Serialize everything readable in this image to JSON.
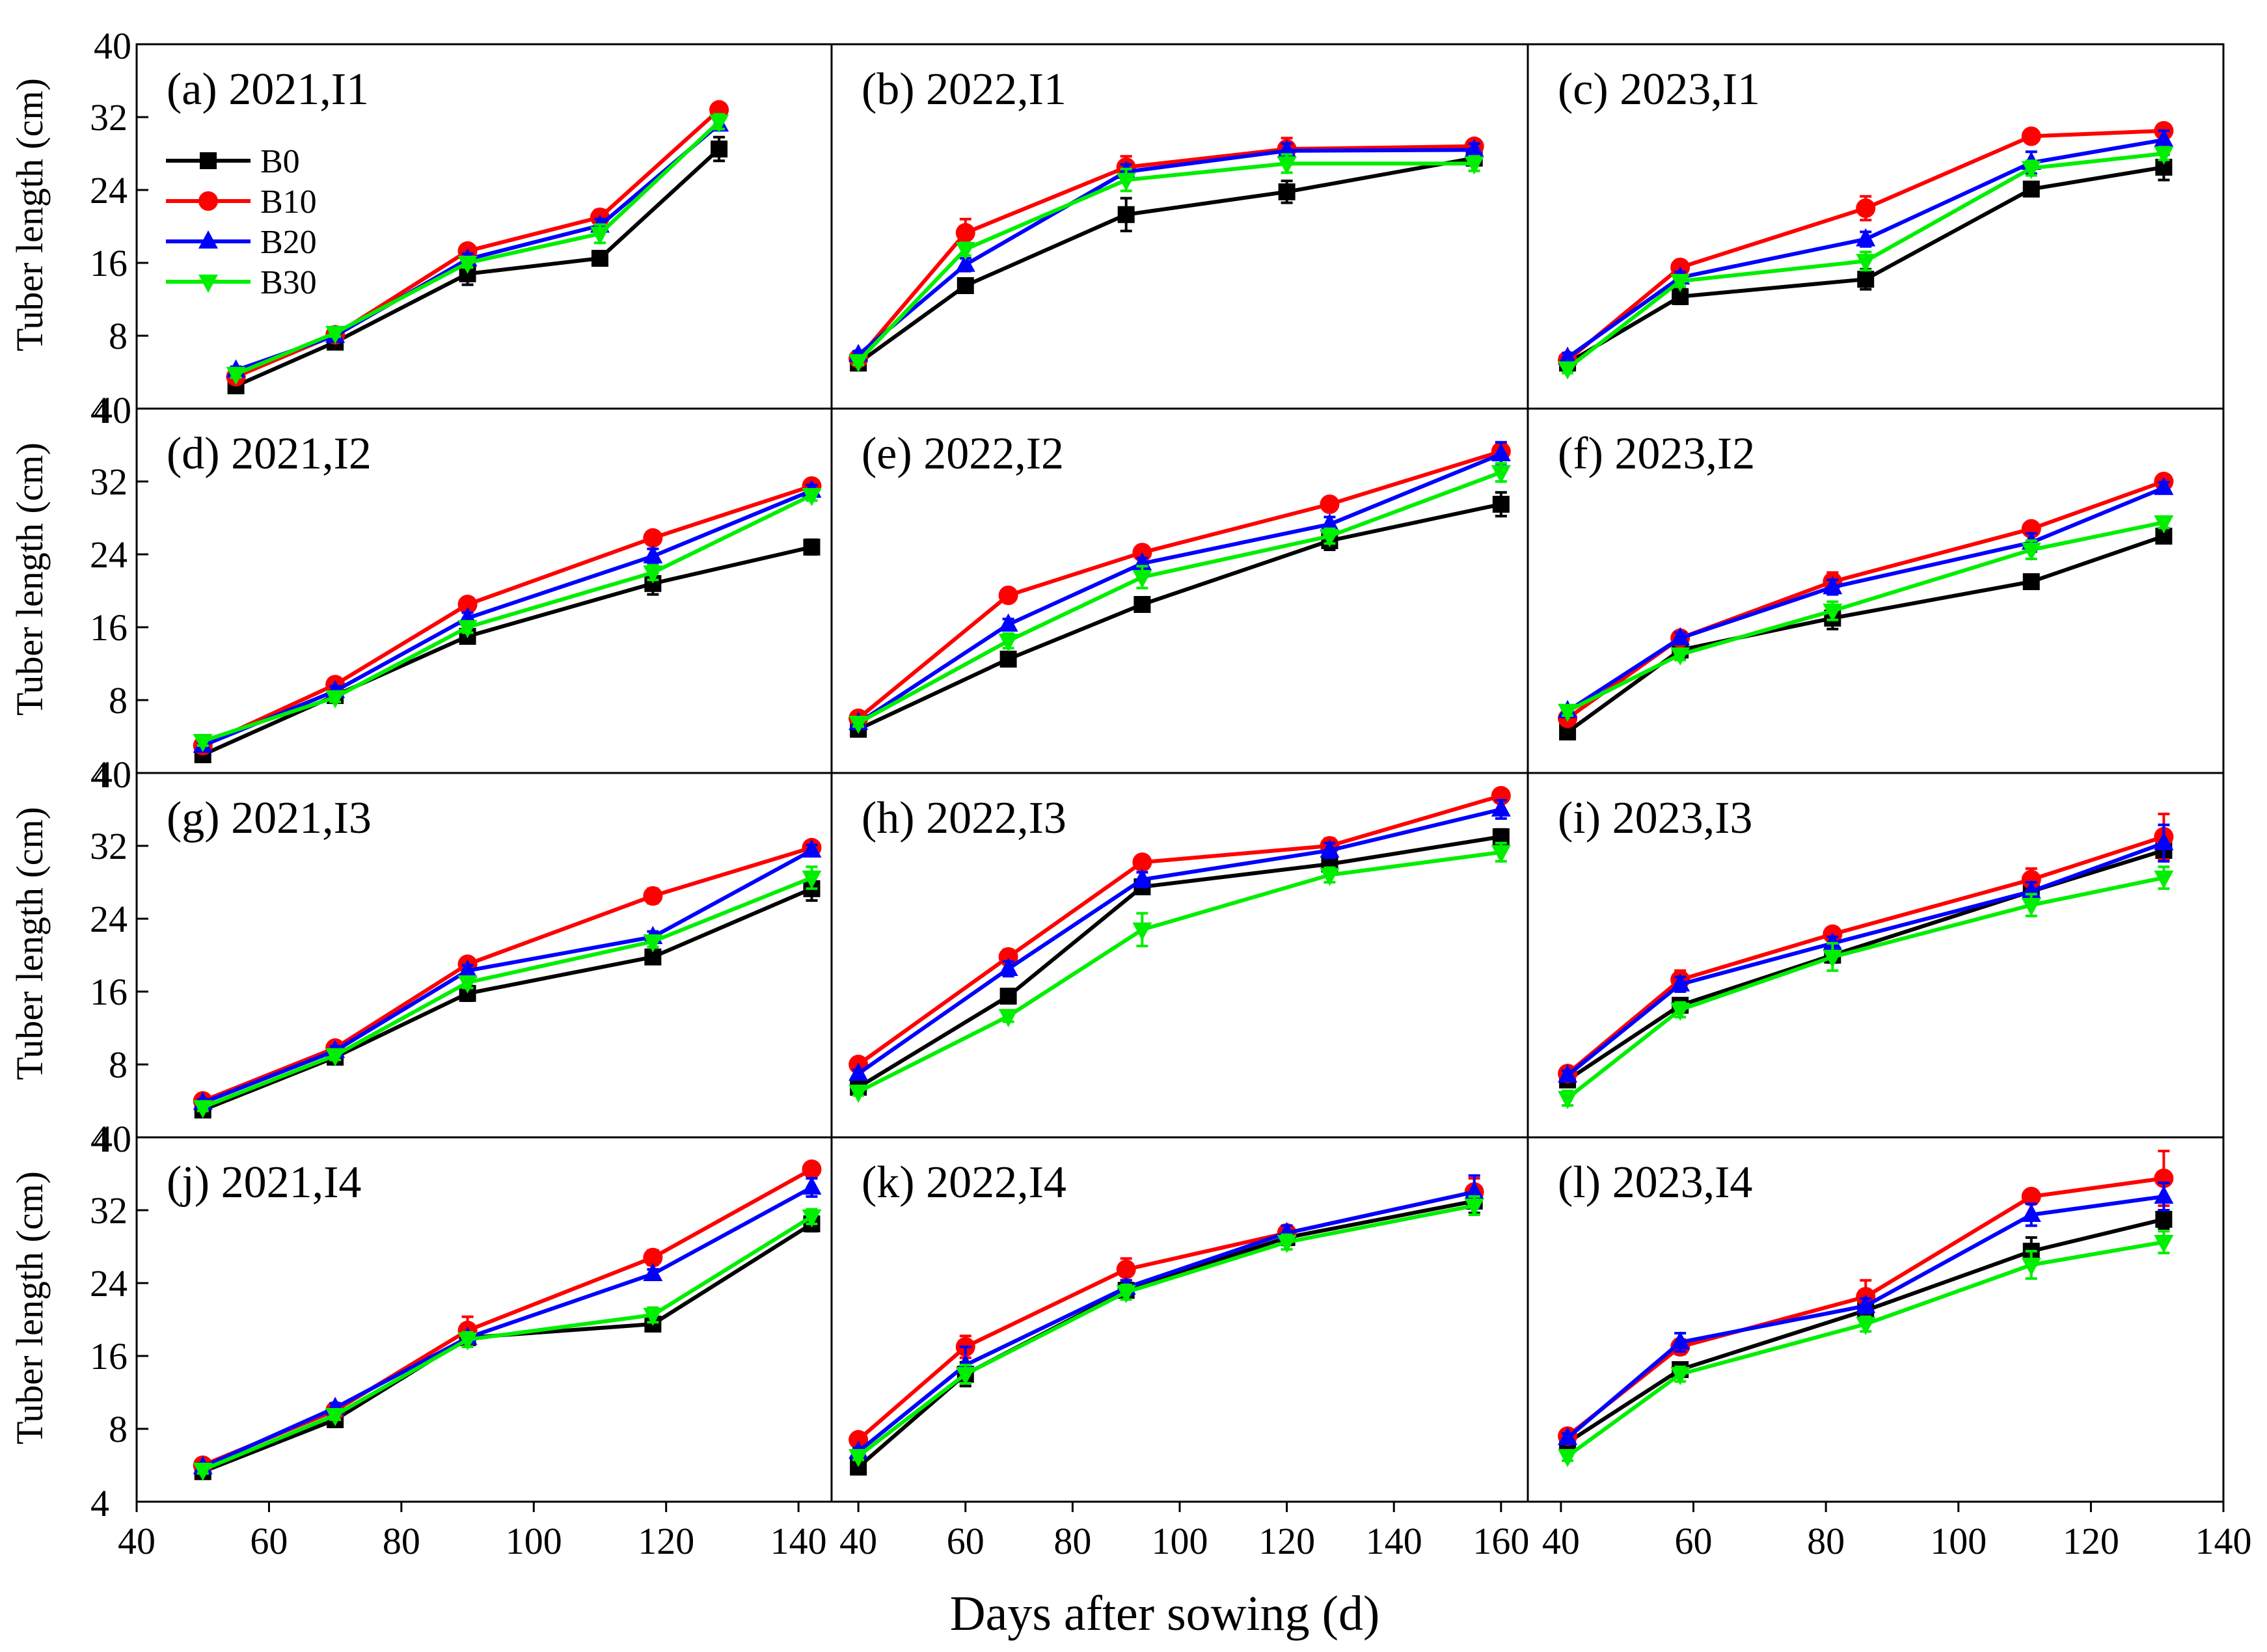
{
  "figure": {
    "xlabel": "Days after sowing (d)",
    "ylabel": "Tuber length (cm)",
    "legend": [
      "B0",
      "B10",
      "B20",
      "B30"
    ]
  },
  "colors": {
    "B0": "#000000",
    "B10": "#ff0000",
    "B20": "#0000ff",
    "B30": "#00ee00"
  },
  "chart_data": [
    {
      "type": "line",
      "title": "(a) 2021,I1",
      "xlim": [
        40,
        145
      ],
      "ylim": [
        0,
        40
      ],
      "xticks": [],
      "x": [
        55,
        70,
        90,
        110,
        128
      ],
      "series": [
        {
          "name": "B0",
          "values": [
            2.5,
            7.3,
            14.8,
            16.5,
            28.5
          ],
          "errors": [
            0.4,
            0.4,
            1.2,
            0.7,
            1.3
          ]
        },
        {
          "name": "B10",
          "values": [
            3.5,
            8.1,
            17.3,
            21.0,
            32.8
          ],
          "errors": [
            0.4,
            0.4,
            0.7,
            0.8,
            0.6
          ]
        },
        {
          "name": "B20",
          "values": [
            4.2,
            8.0,
            16.4,
            20.1,
            31.2
          ],
          "errors": [
            0.4,
            0.4,
            0.6,
            0.7,
            0.6
          ]
        },
        {
          "name": "B30",
          "values": [
            3.8,
            8.3,
            16.0,
            19.2,
            31.5
          ],
          "errors": [
            0.4,
            0.4,
            0.5,
            1.0,
            0.8
          ]
        }
      ]
    },
    {
      "type": "line",
      "title": "(b) 2022,I1",
      "xlim": [
        35,
        165
      ],
      "ylim": [
        0,
        40
      ],
      "xticks": [],
      "x": [
        40,
        60,
        90,
        120,
        155
      ],
      "series": [
        {
          "name": "B0",
          "values": [
            5.0,
            13.5,
            21.3,
            23.8,
            27.5
          ],
          "errors": [
            0.4,
            0.5,
            1.8,
            1.2,
            0.7
          ]
        },
        {
          "name": "B10",
          "values": [
            5.5,
            19.3,
            26.5,
            28.5,
            28.8
          ],
          "errors": [
            0.4,
            1.5,
            1.2,
            1.2,
            0.7
          ]
        },
        {
          "name": "B20",
          "values": [
            5.9,
            15.8,
            26.0,
            28.3,
            28.4
          ],
          "errors": [
            0.4,
            0.7,
            0.8,
            0.8,
            0.7
          ]
        },
        {
          "name": "B30",
          "values": [
            5.2,
            17.5,
            25.1,
            26.9,
            26.9
          ],
          "errors": [
            0.4,
            0.7,
            1.2,
            1.0,
            0.8
          ]
        }
      ]
    },
    {
      "type": "line",
      "title": "(c) 2023,I1",
      "xlim": [
        35,
        140
      ],
      "ylim": [
        0,
        40
      ],
      "xticks": [],
      "x": [
        41,
        58,
        86,
        111,
        131
      ],
      "series": [
        {
          "name": "B0",
          "values": [
            5.0,
            12.3,
            14.2,
            24.1,
            26.5
          ],
          "errors": [
            0.4,
            0.8,
            1.1,
            0.5,
            1.4
          ]
        },
        {
          "name": "B10",
          "values": [
            5.3,
            15.5,
            22.0,
            29.9,
            30.5
          ],
          "errors": [
            0.4,
            0.5,
            1.3,
            0.5,
            0.5
          ]
        },
        {
          "name": "B20",
          "values": [
            5.6,
            14.4,
            18.6,
            27.0,
            29.5
          ],
          "errors": [
            0.5,
            0.6,
            0.8,
            1.2,
            1.0
          ]
        },
        {
          "name": "B30",
          "values": [
            4.4,
            14.0,
            16.2,
            26.4,
            28.0
          ],
          "errors": [
            0.5,
            0.6,
            1.0,
            0.8,
            0.7
          ]
        }
      ]
    },
    {
      "type": "line",
      "title": "(d) 2021,I2",
      "xlim": [
        40,
        145
      ],
      "ylim": [
        0,
        40
      ],
      "xticks": [],
      "x": [
        50,
        70,
        90,
        118,
        142
      ],
      "series": [
        {
          "name": "B0",
          "values": [
            2.0,
            8.5,
            15.0,
            20.8,
            24.8
          ],
          "errors": [
            0.4,
            0.5,
            0.7,
            1.2,
            0.8
          ]
        },
        {
          "name": "B10",
          "values": [
            3.0,
            9.7,
            18.5,
            25.8,
            31.5
          ],
          "errors": [
            0.4,
            0.5,
            0.6,
            0.6,
            0.5
          ]
        },
        {
          "name": "B20",
          "values": [
            3.0,
            9.0,
            17.0,
            23.8,
            31.0
          ],
          "errors": [
            0.4,
            0.5,
            0.6,
            0.8,
            0.6
          ]
        },
        {
          "name": "B30",
          "values": [
            3.5,
            8.3,
            16.0,
            22.0,
            30.5
          ],
          "errors": [
            0.5,
            0.5,
            0.6,
            0.8,
            0.6
          ]
        }
      ]
    },
    {
      "type": "line",
      "title": "(e) 2022,I2",
      "xlim": [
        35,
        165
      ],
      "ylim": [
        0,
        40
      ],
      "xticks": [],
      "x": [
        40,
        68,
        93,
        128,
        160
      ],
      "series": [
        {
          "name": "B0",
          "values": [
            4.8,
            12.5,
            18.5,
            25.5,
            29.5
          ],
          "errors": [
            0.4,
            0.5,
            0.6,
            1.0,
            1.3
          ]
        },
        {
          "name": "B10",
          "values": [
            6.0,
            19.5,
            24.2,
            29.5,
            35.3
          ],
          "errors": [
            0.4,
            0.6,
            0.6,
            0.6,
            0.7
          ]
        },
        {
          "name": "B20",
          "values": [
            5.5,
            16.3,
            23.0,
            27.3,
            35.0
          ],
          "errors": [
            0.4,
            0.6,
            0.6,
            0.8,
            1.3
          ]
        },
        {
          "name": "B30",
          "values": [
            5.5,
            14.5,
            21.5,
            26.0,
            33.0
          ],
          "errors": [
            0.4,
            0.8,
            1.2,
            0.8,
            1.0
          ]
        }
      ]
    },
    {
      "type": "line",
      "title": "(f) 2023,I2",
      "xlim": [
        35,
        140
      ],
      "ylim": [
        0,
        40
      ],
      "xticks": [],
      "x": [
        41,
        58,
        81,
        111,
        131
      ],
      "series": [
        {
          "name": "B0",
          "values": [
            4.5,
            13.5,
            17.0,
            21.0,
            26.0
          ],
          "errors": [
            0.5,
            0.8,
            1.2,
            0.5,
            0.5
          ]
        },
        {
          "name": "B10",
          "values": [
            6.0,
            14.8,
            21.0,
            26.8,
            32.0
          ],
          "errors": [
            0.5,
            0.6,
            1.0,
            0.5,
            0.5
          ]
        },
        {
          "name": "B20",
          "values": [
            6.8,
            14.8,
            20.4,
            25.3,
            31.3
          ],
          "errors": [
            0.5,
            0.6,
            0.8,
            1.0,
            0.6
          ]
        },
        {
          "name": "B30",
          "values": [
            6.8,
            13.0,
            17.8,
            24.5,
            27.5
          ],
          "errors": [
            0.5,
            0.6,
            1.0,
            1.0,
            0.6
          ]
        }
      ]
    },
    {
      "type": "line",
      "title": "(g) 2021,I3",
      "xlim": [
        40,
        145
      ],
      "ylim": [
        0,
        40
      ],
      "xticks": [],
      "x": [
        50,
        70,
        90,
        118,
        142
      ],
      "series": [
        {
          "name": "B0",
          "values": [
            3.0,
            8.8,
            15.8,
            19.8,
            27.3
          ],
          "errors": [
            0.4,
            0.5,
            0.8,
            0.7,
            1.3
          ]
        },
        {
          "name": "B10",
          "values": [
            4.0,
            9.8,
            19.0,
            26.5,
            31.8
          ],
          "errors": [
            0.4,
            0.5,
            0.6,
            0.8,
            0.6
          ]
        },
        {
          "name": "B20",
          "values": [
            3.8,
            9.5,
            18.3,
            22.0,
            31.5
          ],
          "errors": [
            0.4,
            0.5,
            0.6,
            0.6,
            0.6
          ]
        },
        {
          "name": "B30",
          "values": [
            3.3,
            9.0,
            17.0,
            21.5,
            28.5
          ],
          "errors": [
            0.4,
            0.5,
            0.6,
            0.6,
            1.2
          ]
        }
      ]
    },
    {
      "type": "line",
      "title": "(h) 2022,I3",
      "xlim": [
        35,
        165
      ],
      "ylim": [
        0,
        40
      ],
      "xticks": [],
      "x": [
        40,
        68,
        93,
        128,
        160
      ],
      "series": [
        {
          "name": "B0",
          "values": [
            5.5,
            15.5,
            27.5,
            30.0,
            33.0
          ],
          "errors": [
            0.4,
            0.6,
            0.6,
            0.8,
            0.8
          ]
        },
        {
          "name": "B10",
          "values": [
            8.0,
            19.8,
            30.2,
            32.0,
            37.5
          ],
          "errors": [
            0.4,
            0.8,
            0.5,
            0.8,
            0.6
          ]
        },
        {
          "name": "B20",
          "values": [
            7.0,
            18.5,
            28.3,
            31.5,
            36.0
          ],
          "errors": [
            0.4,
            0.8,
            0.8,
            0.8,
            1.0
          ]
        },
        {
          "name": "B30",
          "values": [
            5.0,
            13.3,
            22.8,
            28.8,
            31.3
          ],
          "errors": [
            0.4,
            0.6,
            1.8,
            0.8,
            1.0
          ]
        }
      ]
    },
    {
      "type": "line",
      "title": "(i) 2023,I3",
      "xlim": [
        35,
        140
      ],
      "ylim": [
        0,
        40
      ],
      "xticks": [],
      "x": [
        41,
        58,
        81,
        111,
        131
      ],
      "series": [
        {
          "name": "B0",
          "values": [
            6.3,
            14.5,
            20.0,
            27.0,
            31.5
          ],
          "errors": [
            0.5,
            0.6,
            0.8,
            0.8,
            1.0
          ]
        },
        {
          "name": "B10",
          "values": [
            7.0,
            17.3,
            22.3,
            28.3,
            33.0
          ],
          "errors": [
            0.5,
            1.0,
            0.7,
            1.2,
            2.5
          ]
        },
        {
          "name": "B20",
          "values": [
            6.8,
            16.8,
            21.3,
            27.0,
            32.3
          ],
          "errors": [
            0.5,
            0.8,
            0.7,
            1.0,
            2.0
          ]
        },
        {
          "name": "B30",
          "values": [
            4.3,
            14.0,
            19.8,
            25.5,
            28.5
          ],
          "errors": [
            0.8,
            0.8,
            1.5,
            1.2,
            1.2
          ]
        }
      ]
    },
    {
      "type": "line",
      "title": "(j) 2021,I4",
      "xlim": [
        40,
        145
      ],
      "ylim": [
        0,
        40
      ],
      "xticks": [
        40,
        60,
        80,
        100,
        120,
        140
      ],
      "x": [
        50,
        70,
        90,
        118,
        142
      ],
      "series": [
        {
          "name": "B0",
          "values": [
            3.3,
            9.0,
            18.0,
            19.5,
            30.5
          ],
          "errors": [
            0.4,
            0.5,
            0.6,
            0.5,
            0.8
          ]
        },
        {
          "name": "B10",
          "values": [
            4.0,
            10.0,
            18.8,
            26.8,
            36.5
          ],
          "errors": [
            0.4,
            0.5,
            1.5,
            0.8,
            0.5
          ]
        },
        {
          "name": "B20",
          "values": [
            3.8,
            10.3,
            18.0,
            25.0,
            34.5
          ],
          "errors": [
            0.4,
            0.5,
            0.6,
            0.5,
            1.0
          ]
        },
        {
          "name": "B30",
          "values": [
            3.5,
            9.5,
            17.8,
            20.5,
            31.3
          ],
          "errors": [
            0.4,
            0.5,
            0.8,
            0.8,
            0.8
          ]
        }
      ]
    },
    {
      "type": "line",
      "title": "(k) 2022,I4",
      "xlim": [
        35,
        165
      ],
      "ylim": [
        0,
        40
      ],
      "xticks": [
        40,
        60,
        80,
        100,
        120,
        140,
        160
      ],
      "x": [
        40,
        60,
        90,
        120,
        155
      ],
      "series": [
        {
          "name": "B0",
          "values": [
            3.8,
            14.0,
            23.2,
            29.0,
            33.0
          ],
          "errors": [
            0.4,
            1.3,
            0.8,
            0.8,
            1.3
          ]
        },
        {
          "name": "B10",
          "values": [
            6.8,
            17.0,
            25.5,
            29.5,
            34.0
          ],
          "errors": [
            0.4,
            1.2,
            1.2,
            0.8,
            1.5
          ]
        },
        {
          "name": "B20",
          "values": [
            5.5,
            15.0,
            23.5,
            29.5,
            34.0
          ],
          "errors": [
            0.4,
            2.0,
            0.8,
            0.8,
            1.8
          ]
        },
        {
          "name": "B30",
          "values": [
            5.0,
            14.0,
            23.0,
            28.5,
            32.5
          ],
          "errors": [
            0.4,
            1.0,
            0.8,
            0.8,
            1.0
          ]
        }
      ]
    },
    {
      "type": "line",
      "title": "(l) 2023,I4",
      "xlim": [
        35,
        140
      ],
      "ylim": [
        0,
        40
      ],
      "xticks": [
        40,
        60,
        80,
        100,
        120,
        140
      ],
      "x": [
        41,
        58,
        86,
        111,
        131
      ],
      "series": [
        {
          "name": "B0",
          "values": [
            6.5,
            14.5,
            21.0,
            27.5,
            31.0
          ],
          "errors": [
            0.5,
            0.6,
            0.8,
            1.5,
            1.0
          ]
        },
        {
          "name": "B10",
          "values": [
            7.2,
            17.0,
            22.5,
            33.5,
            35.5
          ],
          "errors": [
            0.5,
            0.8,
            1.8,
            0.5,
            3.0
          ]
        },
        {
          "name": "B20",
          "values": [
            7.0,
            17.5,
            21.5,
            31.5,
            33.5
          ],
          "errors": [
            0.5,
            1.0,
            0.8,
            1.2,
            1.5
          ]
        },
        {
          "name": "B30",
          "values": [
            5.0,
            14.0,
            19.5,
            26.0,
            28.5
          ],
          "errors": [
            0.5,
            0.8,
            0.8,
            1.5,
            1.2
          ]
        }
      ]
    }
  ]
}
